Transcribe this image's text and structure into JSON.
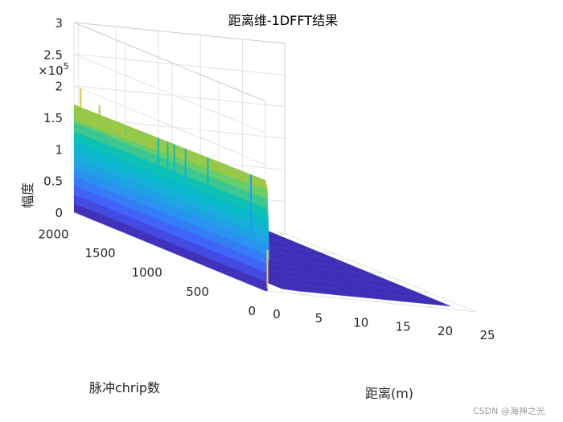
{
  "chart_data": {
    "type": "surface",
    "title": "距离维-1DFFT结果",
    "xlabel": "距离(m)",
    "ylabel": "脉冲chrip数",
    "zlabel": "幅度",
    "z_exponent_label": "×10",
    "z_exponent_power": "5",
    "xlim": [
      0,
      25
    ],
    "ylim": [
      0,
      2048
    ],
    "zlim": [
      0,
      3
    ],
    "xticks": [
      "0",
      "5",
      "10",
      "15",
      "20",
      "25"
    ],
    "yticks": [
      "0",
      "500",
      "1000",
      "1500",
      "2000"
    ],
    "zticks": [
      "0",
      "0.5",
      "1",
      "1.5",
      "2",
      "2.5",
      "3"
    ],
    "x_values": [
      0,
      0.25,
      0.5,
      1,
      2,
      4,
      6,
      8,
      10,
      12,
      14,
      16,
      18,
      20,
      22
    ],
    "amplitude_profile": [
      1.75,
      1.6,
      0.5,
      0.12,
      0.06,
      0.05,
      0.05,
      0.05,
      0.05,
      0.05,
      0.05,
      0.05,
      0.05,
      0.05,
      0.05
    ],
    "far_edge_profile": [
      1.7,
      1.45,
      0.45,
      0.12,
      0.06,
      0.05,
      0.05,
      0.05,
      0.05,
      0.05,
      0.05,
      0.05,
      0.05,
      0.05,
      0.05
    ],
    "spikes": [
      {
        "y": 1980,
        "z": 2.0
      },
      {
        "y": 1780,
        "z": 1.85
      },
      {
        "y": 1500,
        "z": 1.55
      },
      {
        "y": 1150,
        "z": 1.2
      },
      {
        "y": 1050,
        "z": 1.25
      },
      {
        "y": 980,
        "z": 1.05
      },
      {
        "y": 860,
        "z": 1.0
      },
      {
        "y": 620,
        "z": 1.1
      },
      {
        "y": 160,
        "z": 0.75
      }
    ],
    "grid": true,
    "colormap": "parula"
  },
  "watermark": "CSDN @海神之光"
}
